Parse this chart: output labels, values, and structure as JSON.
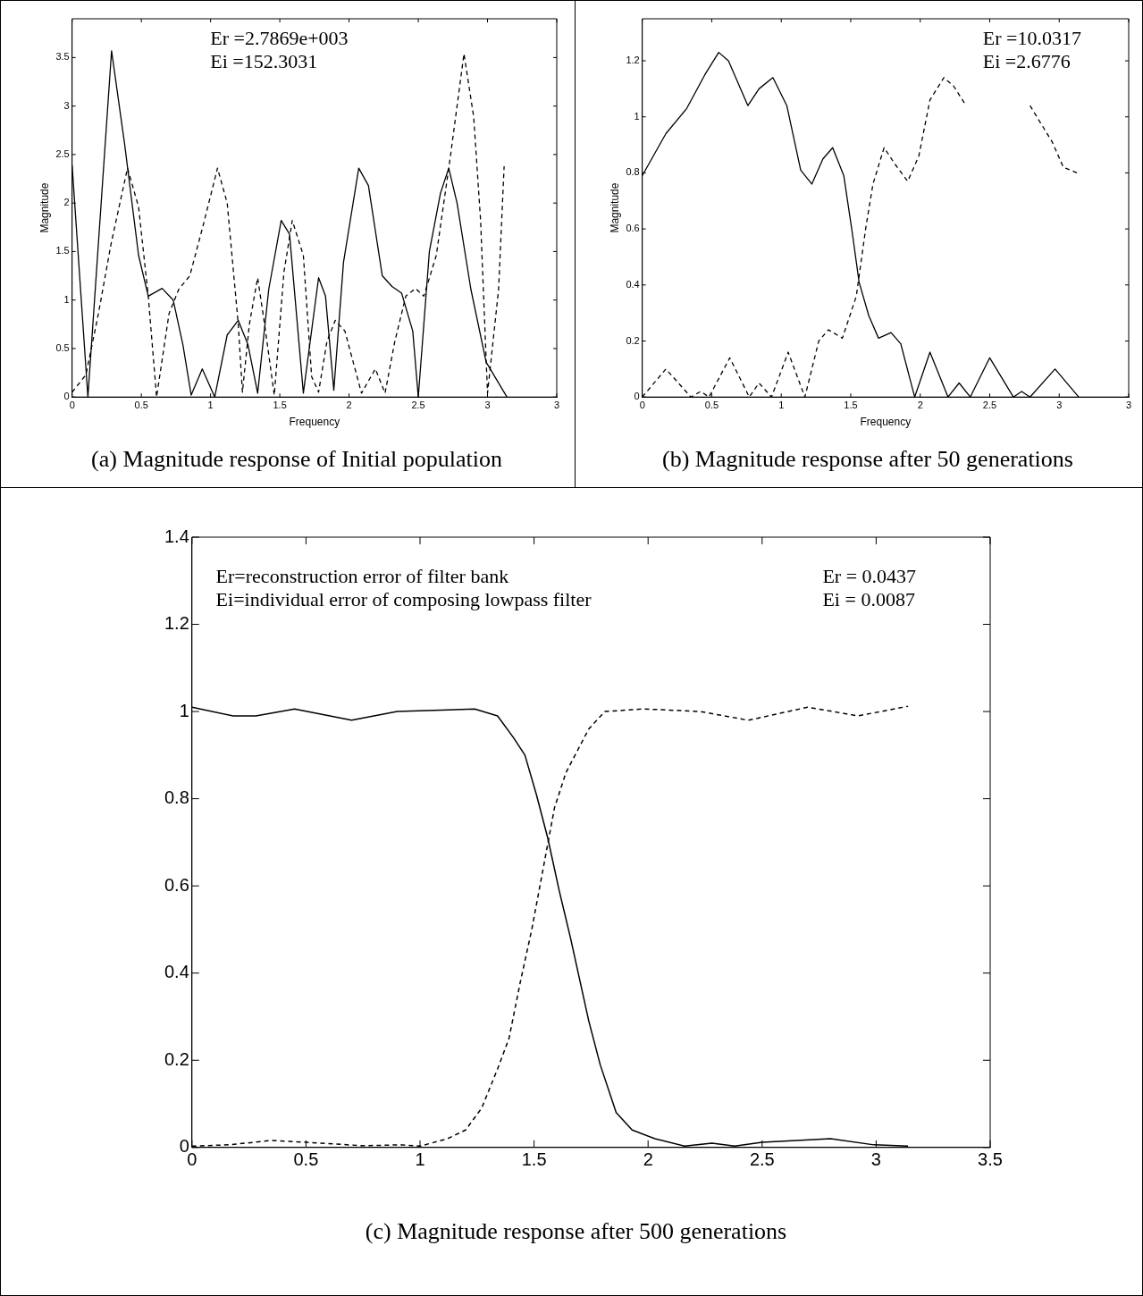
{
  "chart_data": [
    {
      "type": "line",
      "title": "(a) Magnitude response of Initial population",
      "xlabel": "Frequency",
      "ylabel": "Magnitude",
      "annotations": [
        "Er =2.7869e+003",
        "Ei =152.3031"
      ],
      "xlim": [
        0,
        3.5
      ],
      "ylim": [
        0,
        3.9
      ],
      "xticks": [
        0,
        0.5,
        1,
        1.5,
        2,
        2.5,
        3,
        {
          "value": 3.5,
          "label": "3"
        }
      ],
      "yticks": [
        0,
        0.5,
        1,
        1.5,
        2,
        2.5,
        3,
        3.5
      ],
      "grid": false,
      "legend": false,
      "series": [
        {
          "color": "#000000",
          "line_style": "solid",
          "x": [
            0,
            0.114,
            0.285,
            0.38,
            0.48,
            0.55,
            0.65,
            0.73,
            0.8,
            0.86,
            0.94,
            1.03,
            1.12,
            1.2,
            1.27,
            1.34,
            1.42,
            1.51,
            1.57,
            1.67,
            1.78,
            1.83,
            1.89,
            1.96,
            2.07,
            2.14,
            2.24,
            2.31,
            2.38,
            2.46,
            2.5,
            2.58,
            2.66,
            2.72,
            2.78,
            2.88,
            2.99,
            3.14
          ],
          "values": [
            2.39,
            0,
            3.57,
            2.6,
            1.46,
            1.04,
            1.12,
            1.0,
            0.54,
            0.02,
            0.29,
            0,
            0.64,
            0.79,
            0.54,
            0.04,
            1.11,
            1.82,
            1.68,
            0.04,
            1.23,
            1.04,
            0.07,
            1.39,
            2.36,
            2.18,
            1.25,
            1.14,
            1.07,
            0.68,
            0,
            1.5,
            2.1,
            2.36,
            2.0,
            1.11,
            0.36,
            0
          ]
        },
        {
          "color": "#000000",
          "line_style": "dashed",
          "x": [
            0,
            0.1,
            0.19,
            0.28,
            0.4,
            0.48,
            0.55,
            0.61,
            0.7,
            0.77,
            0.85,
            0.95,
            1.05,
            1.12,
            1.2,
            1.23,
            1.28,
            1.34,
            1.39,
            1.46,
            1.53,
            1.59,
            1.67,
            1.73,
            1.78,
            1.84,
            1.9,
            1.97,
            2.09,
            2.19,
            2.26,
            2.33,
            2.41,
            2.48,
            2.54,
            2.63,
            2.73,
            2.83,
            2.9,
            2.95,
            3.0,
            3.08,
            3.12
          ],
          "values": [
            0.05,
            0.23,
            0.86,
            1.57,
            2.36,
            1.96,
            1.04,
            0,
            0.86,
            1.11,
            1.25,
            1.79,
            2.36,
            2.0,
            0.75,
            0.05,
            0.75,
            1.23,
            0.75,
            0.02,
            1.29,
            1.82,
            1.46,
            0.21,
            0.05,
            0.57,
            0.79,
            0.68,
            0.04,
            0.29,
            0.04,
            0.57,
            1.04,
            1.12,
            1.04,
            1.46,
            2.46,
            3.54,
            2.89,
            1.82,
            0.04,
            1.11,
            2.38
          ]
        }
      ]
    },
    {
      "type": "line",
      "title": "(b) Magnitude response after 50 generations",
      "xlabel": "Frequency",
      "ylabel": "Magnitude",
      "annotations": [
        "Er =10.0317",
        "Ei =2.6776"
      ],
      "xlim": [
        0,
        3.5
      ],
      "ylim": [
        0,
        1.35
      ],
      "xticks": [
        0,
        0.5,
        1,
        1.5,
        2,
        2.5,
        3,
        {
          "value": 3.5,
          "label": "3"
        }
      ],
      "yticks": [
        0,
        0.2,
        0.4,
        0.6,
        0.8,
        1,
        1.2
      ],
      "grid": false,
      "legend": false,
      "series": [
        {
          "color": "#000000",
          "line_style": "solid",
          "x": [
            0,
            0.17,
            0.32,
            0.45,
            0.55,
            0.62,
            0.76,
            0.84,
            0.94,
            1.04,
            1.14,
            1.22,
            1.3,
            1.37,
            1.45,
            1.51,
            1.56,
            1.63,
            1.7,
            1.79,
            1.86,
            1.96,
            2.07,
            2.2,
            2.28,
            2.36,
            2.5,
            2.67,
            2.73,
            2.79,
            2.97,
            3.14
          ],
          "values": [
            0.79,
            0.94,
            1.03,
            1.15,
            1.23,
            1.2,
            1.04,
            1.1,
            1.14,
            1.04,
            0.81,
            0.76,
            0.85,
            0.89,
            0.79,
            0.59,
            0.41,
            0.29,
            0.21,
            0.23,
            0.19,
            0,
            0.16,
            0,
            0.05,
            0,
            0.14,
            0,
            0.02,
            0,
            0.1,
            0
          ]
        },
        {
          "color": "#000000",
          "line_style": "dashed",
          "x": [
            0,
            0.17,
            0.35,
            0.42,
            0.48,
            0.63,
            0.77,
            0.84,
            0.93,
            1.05,
            1.17,
            1.27,
            1.34,
            1.44,
            1.54,
            1.61,
            1.66,
            1.74,
            1.82,
            1.91,
            1.99,
            2.07,
            2.17,
            2.24,
            2.33,
            2.55,
            2.79,
            2.95,
            3.03,
            3.13
          ],
          "values": [
            0,
            0.1,
            0,
            0.02,
            0,
            0.14,
            0,
            0.05,
            0,
            0.16,
            0,
            0.2,
            0.24,
            0.21,
            0.36,
            0.61,
            0.76,
            0.89,
            0.83,
            0.77,
            0.86,
            1.06,
            1.14,
            1.11,
            1.04,
            null,
            1.04,
            0.91,
            0.82,
            0.8
          ]
        }
      ]
    },
    {
      "type": "line",
      "title": "(c) Magnitude response after 500 generations",
      "annotations": [
        "Er=reconstruction error of filter bank",
        "Ei=individual error of composing lowpass filter",
        "Er = 0.0437",
        "Ei = 0.0087"
      ],
      "xlim": [
        0,
        3.5
      ],
      "ylim": [
        0,
        1.4
      ],
      "xticks": [
        0,
        0.5,
        1,
        1.5,
        2,
        2.5,
        3,
        3.5
      ],
      "yticks": [
        0,
        0.2,
        0.4,
        0.6,
        0.8,
        1,
        1.2,
        1.4
      ],
      "grid": false,
      "legend": false,
      "series": [
        {
          "color": "#000000",
          "line_style": "solid",
          "x": [
            0,
            0.18,
            0.28,
            0.45,
            0.7,
            0.9,
            1.24,
            1.34,
            1.41,
            1.46,
            1.51,
            1.56,
            1.61,
            1.66,
            1.74,
            1.79,
            1.86,
            1.93,
            2.03,
            2.16,
            2.28,
            2.38,
            2.5,
            2.8,
            2.99,
            3.14
          ],
          "values": [
            1.01,
            0.99,
            0.99,
            1.006,
            0.98,
            1.0,
            1.006,
            0.99,
            0.94,
            0.9,
            0.81,
            0.71,
            0.59,
            0.48,
            0.29,
            0.19,
            0.08,
            0.04,
            0.02,
            0.003,
            0.01,
            0.003,
            0.012,
            0.02,
            0.006,
            0.003
          ]
        },
        {
          "color": "#000000",
          "line_style": "dashed",
          "x": [
            0,
            0.16,
            0.35,
            0.5,
            0.75,
            0.92,
            1.0,
            1.12,
            1.2,
            1.27,
            1.34,
            1.39,
            1.44,
            1.49,
            1.54,
            1.59,
            1.64,
            1.69,
            1.74,
            1.81,
            1.98,
            2.23,
            2.44,
            2.7,
            2.92,
            3.14
          ],
          "values": [
            0.003,
            0.006,
            0.016,
            0.012,
            0.004,
            0.006,
            0.003,
            0.02,
            0.04,
            0.09,
            0.18,
            0.25,
            0.38,
            0.5,
            0.64,
            0.78,
            0.86,
            0.91,
            0.96,
            1.0,
            1.006,
            1.0,
            0.98,
            1.01,
            0.99,
            1.012
          ]
        }
      ]
    }
  ]
}
